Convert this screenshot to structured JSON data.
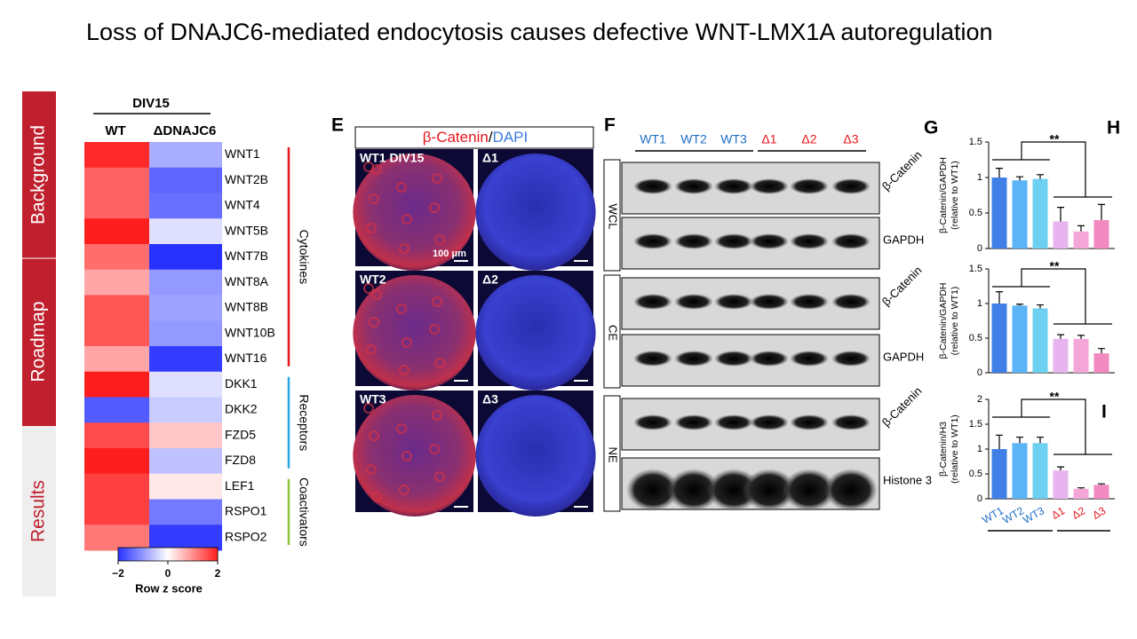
{
  "title": "Loss of DNAJC6-mediated endocytosis causes defective WNT-LMX1A autoregulation",
  "sidebar": [
    "Background",
    "Roadmap",
    "Results"
  ],
  "heatmap": {
    "header": "DIV15",
    "columns": [
      "WT",
      "ΔDNAJC6"
    ],
    "groups": [
      {
        "label": "Cytokines",
        "color": "#e8161b",
        "genes": [
          {
            "name": "WNT1",
            "values": [
              1.9,
              -0.8
            ]
          },
          {
            "name": "WNT2B",
            "values": [
              1.4,
              -1.5
            ]
          },
          {
            "name": "WNT4",
            "values": [
              1.4,
              -1.4
            ]
          },
          {
            "name": "WNT5B",
            "values": [
              2.0,
              -0.3
            ]
          },
          {
            "name": "WNT7B",
            "values": [
              1.3,
              -2.0
            ]
          },
          {
            "name": "WNT8A",
            "values": [
              0.8,
              -1.0
            ]
          },
          {
            "name": "WNT8B",
            "values": [
              1.5,
              -0.9
            ]
          },
          {
            "name": "WNT10B",
            "values": [
              1.5,
              -1.0
            ]
          },
          {
            "name": "WNT16",
            "values": [
              0.8,
              -1.9
            ]
          }
        ]
      },
      {
        "label": "Receptors",
        "color": "#29a8df",
        "genes": [
          {
            "name": "DKK1",
            "values": [
              2.0,
              -0.3
            ]
          },
          {
            "name": "DKK2",
            "values": [
              -1.6,
              -0.5
            ]
          },
          {
            "name": "FZD5",
            "values": [
              1.6,
              0.5
            ]
          },
          {
            "name": "FZD8",
            "values": [
              2.0,
              -0.6
            ]
          }
        ]
      },
      {
        "label": "Coactivators",
        "color": "#8cc63f",
        "genes": [
          {
            "name": "LEF1",
            "values": [
              1.7,
              0.2
            ]
          },
          {
            "name": "RSPO1",
            "values": [
              1.7,
              -1.3
            ]
          },
          {
            "name": "RSPO2",
            "values": [
              1.2,
              -1.9
            ]
          }
        ]
      }
    ],
    "colorbar": {
      "label": "Row z score",
      "lim": [
        -2,
        2
      ],
      "ticks": [
        {
          "value": -2,
          "label": "−2"
        },
        0,
        2
      ]
    }
  },
  "panel_e": {
    "label": "E",
    "header": [
      "β-Catenin",
      "/",
      "DAPI"
    ],
    "images": [
      {
        "label": "WT1 DIV15",
        "kind": "WT"
      },
      {
        "label": "Δ1",
        "kind": "KO"
      },
      {
        "label": "WT2",
        "kind": "WT"
      },
      {
        "label": "Δ2",
        "kind": "KO"
      },
      {
        "label": "WT3",
        "kind": "WT"
      },
      {
        "label": "Δ3",
        "kind": "KO"
      }
    ],
    "scale_bar": "100 μm"
  },
  "panel_f": {
    "label": "F",
    "lanes": [
      {
        "label": "WT1",
        "color": "#1f6fc5"
      },
      {
        "label": "WT2",
        "color": "#1f6fc5"
      },
      {
        "label": "WT3",
        "color": "#1f6fc5"
      },
      {
        "label": "Δ1",
        "color": "#e8161b"
      },
      {
        "label": "Δ2",
        "color": "#e8161b"
      },
      {
        "label": "Δ3",
        "color": "#e8161b"
      }
    ],
    "fractions": [
      {
        "label": "WCL",
        "rows": [
          "β-Catenin",
          "GAPDH"
        ]
      },
      {
        "label": "CE",
        "rows": [
          "β-Catenin",
          "GAPDH"
        ]
      },
      {
        "label": "NE",
        "rows": [
          "β-Catenin",
          "Histone 3"
        ]
      }
    ]
  },
  "charts": {
    "categories": [
      "WT1",
      "WT2",
      "WT3",
      "Δ1",
      "Δ2",
      "Δ3"
    ],
    "category_colors": [
      "#1f6fc5",
      "#1f6fc5",
      "#1f6fc5",
      "#e8161b",
      "#e8161b",
      "#e8161b"
    ],
    "bar_colors": [
      "#3f7fe6",
      "#5ab4f5",
      "#6ed0f0",
      "#e8b4f0",
      "#f5a6d8",
      "#f28ac0"
    ],
    "cut_label": "H",
    "panels": [
      {
        "label": "G",
        "ylabel": [
          "β-Catenin/GAPDH",
          "(relative to WT1)"
        ],
        "ylim": [
          0,
          1.5
        ],
        "yticks": [
          0,
          0.5,
          1,
          1.5
        ],
        "values": [
          1.0,
          0.96,
          0.98,
          0.38,
          0.24,
          0.4
        ],
        "errors": [
          0.13,
          0.05,
          0.06,
          0.2,
          0.08,
          0.22
        ],
        "significance": "**"
      },
      {
        "ylabel": [
          "β-Catenin/GAPDH",
          "(relative to WT1)"
        ],
        "ylim": [
          0,
          1.5
        ],
        "yticks": [
          0,
          0.5,
          1,
          1.5
        ],
        "values": [
          1.0,
          0.97,
          0.93,
          0.49,
          0.49,
          0.28
        ],
        "errors": [
          0.17,
          0.02,
          0.05,
          0.06,
          0.05,
          0.07
        ],
        "significance": "**"
      },
      {
        "label": "I",
        "ylabel": [
          "β-Catenin/H3",
          "(relative to WT1)"
        ],
        "ylim": [
          0,
          2
        ],
        "yticks": [
          0,
          0.5,
          1,
          1.5,
          2
        ],
        "values": [
          1.0,
          1.12,
          1.12,
          0.57,
          0.2,
          0.28
        ],
        "errors": [
          0.28,
          0.12,
          0.12,
          0.07,
          0.02,
          0.02
        ],
        "significance": "**"
      }
    ]
  }
}
